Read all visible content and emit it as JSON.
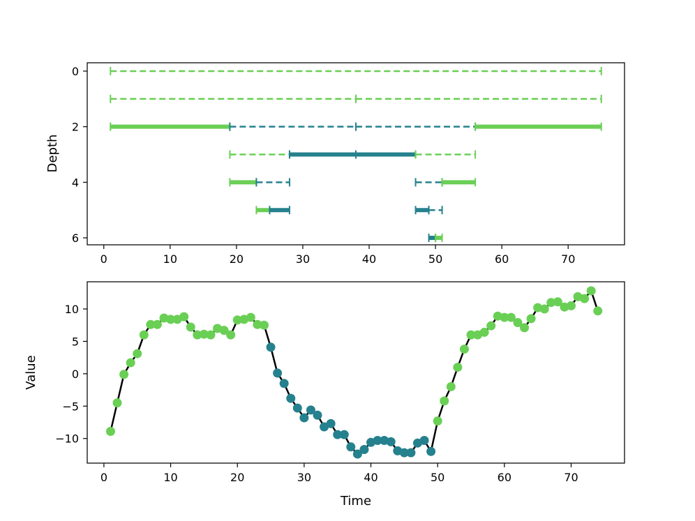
{
  "colors": {
    "light": "#6acf55",
    "dark": "#25818d",
    "line": "#000000"
  },
  "chart_data": [
    {
      "type": "segment-tree",
      "xlabel": "",
      "ylabel": "Depth",
      "xlim": [
        -2.5,
        78.5
      ],
      "ylim": [
        6.25,
        -0.3
      ],
      "xticks": [
        0,
        10,
        20,
        30,
        40,
        50,
        60,
        70
      ],
      "yticks": [
        0,
        2,
        4,
        6
      ],
      "segments": [
        {
          "depth": 0,
          "start": 1,
          "end": 75,
          "class": "light",
          "style": "dashed"
        },
        {
          "depth": 1,
          "start": 1,
          "end": 38,
          "class": "light",
          "style": "dashed"
        },
        {
          "depth": 1,
          "start": 38,
          "end": 75,
          "class": "light",
          "style": "dashed"
        },
        {
          "depth": 2,
          "start": 1,
          "end": 19,
          "class": "light",
          "style": "solid"
        },
        {
          "depth": 2,
          "start": 19,
          "end": 38,
          "class": "dark",
          "style": "dashed"
        },
        {
          "depth": 2,
          "start": 38,
          "end": 56,
          "class": "dark",
          "style": "dashed"
        },
        {
          "depth": 2,
          "start": 56,
          "end": 75,
          "class": "light",
          "style": "solid"
        },
        {
          "depth": 3,
          "start": 19,
          "end": 28,
          "class": "light",
          "style": "dashed"
        },
        {
          "depth": 3,
          "start": 28,
          "end": 38,
          "class": "dark",
          "style": "solid"
        },
        {
          "depth": 3,
          "start": 38,
          "end": 47,
          "class": "dark",
          "style": "solid"
        },
        {
          "depth": 3,
          "start": 47,
          "end": 56,
          "class": "light",
          "style": "dashed"
        },
        {
          "depth": 4,
          "start": 19,
          "end": 23,
          "class": "light",
          "style": "solid"
        },
        {
          "depth": 4,
          "start": 23,
          "end": 28,
          "class": "dark",
          "style": "dashed"
        },
        {
          "depth": 4,
          "start": 47,
          "end": 51,
          "class": "dark",
          "style": "dashed"
        },
        {
          "depth": 4,
          "start": 51,
          "end": 56,
          "class": "light",
          "style": "solid"
        },
        {
          "depth": 5,
          "start": 23,
          "end": 25,
          "class": "light",
          "style": "solid"
        },
        {
          "depth": 5,
          "start": 25,
          "end": 28,
          "class": "dark",
          "style": "solid"
        },
        {
          "depth": 5,
          "start": 47,
          "end": 49,
          "class": "dark",
          "style": "solid"
        },
        {
          "depth": 5,
          "start": 49,
          "end": 51,
          "class": "dark",
          "style": "dashed"
        },
        {
          "depth": 6,
          "start": 49,
          "end": 50,
          "class": "dark",
          "style": "solid"
        },
        {
          "depth": 6,
          "start": 50,
          "end": 51,
          "class": "light",
          "style": "solid"
        }
      ]
    },
    {
      "type": "line",
      "xlabel": "Time",
      "ylabel": "Value",
      "xlim": [
        -2.5,
        78
      ],
      "ylim": [
        -13.8,
        14.2
      ],
      "xticks": [
        0,
        10,
        20,
        30,
        40,
        50,
        60,
        70
      ],
      "yticks": [
        -10,
        -5,
        0,
        5,
        10
      ],
      "x": [
        1,
        2,
        3,
        4,
        5,
        6,
        7,
        8,
        9,
        10,
        11,
        12,
        13,
        14,
        15,
        16,
        17,
        18,
        19,
        20,
        21,
        22,
        23,
        24,
        25,
        26,
        27,
        28,
        29,
        30,
        31,
        32,
        33,
        34,
        35,
        36,
        37,
        38,
        39,
        40,
        41,
        42,
        43,
        44,
        45,
        46,
        47,
        48,
        49,
        50,
        51,
        52,
        53,
        54,
        55,
        56,
        57,
        58,
        59,
        60,
        61,
        62,
        63,
        64,
        65,
        66,
        67,
        68,
        69,
        70,
        71,
        72,
        73,
        74
      ],
      "y": [
        -8.9,
        -4.5,
        -0.1,
        1.7,
        3.1,
        6.0,
        7.6,
        7.6,
        8.6,
        8.4,
        8.4,
        8.8,
        7.2,
        6.0,
        6.1,
        6.0,
        7.0,
        6.7,
        6.0,
        8.3,
        8.4,
        8.7,
        7.6,
        7.5,
        4.1,
        0.1,
        -1.5,
        -3.8,
        -5.3,
        -6.8,
        -5.6,
        -6.4,
        -8.2,
        -7.7,
        -9.4,
        -9.4,
        -11.3,
        -12.4,
        -11.7,
        -10.6,
        -10.3,
        -10.3,
        -10.5,
        -11.9,
        -12.2,
        -12.2,
        -10.7,
        -10.3,
        -12.0,
        -7.3,
        -4.2,
        -2.0,
        1.0,
        3.8,
        6.0,
        6.0,
        6.4,
        7.4,
        8.9,
        8.7,
        8.7,
        7.9,
        7.1,
        8.5,
        10.2,
        10.0,
        11.0,
        11.1,
        10.3,
        10.5,
        11.9,
        11.6,
        12.8,
        9.7
      ],
      "point_class": [
        "light",
        "light",
        "light",
        "light",
        "light",
        "light",
        "light",
        "light",
        "light",
        "light",
        "light",
        "light",
        "light",
        "light",
        "light",
        "light",
        "light",
        "light",
        "light",
        "light",
        "light",
        "light",
        "light",
        "light",
        "dark",
        "dark",
        "dark",
        "dark",
        "dark",
        "dark",
        "dark",
        "dark",
        "dark",
        "dark",
        "dark",
        "dark",
        "dark",
        "dark",
        "dark",
        "dark",
        "dark",
        "dark",
        "dark",
        "dark",
        "dark",
        "dark",
        "dark",
        "dark",
        "dark",
        "light",
        "light",
        "light",
        "light",
        "light",
        "light",
        "light",
        "light",
        "light",
        "light",
        "light",
        "light",
        "light",
        "light",
        "light",
        "light",
        "light",
        "light",
        "light",
        "light",
        "light",
        "light",
        "light",
        "light",
        "light"
      ]
    }
  ]
}
